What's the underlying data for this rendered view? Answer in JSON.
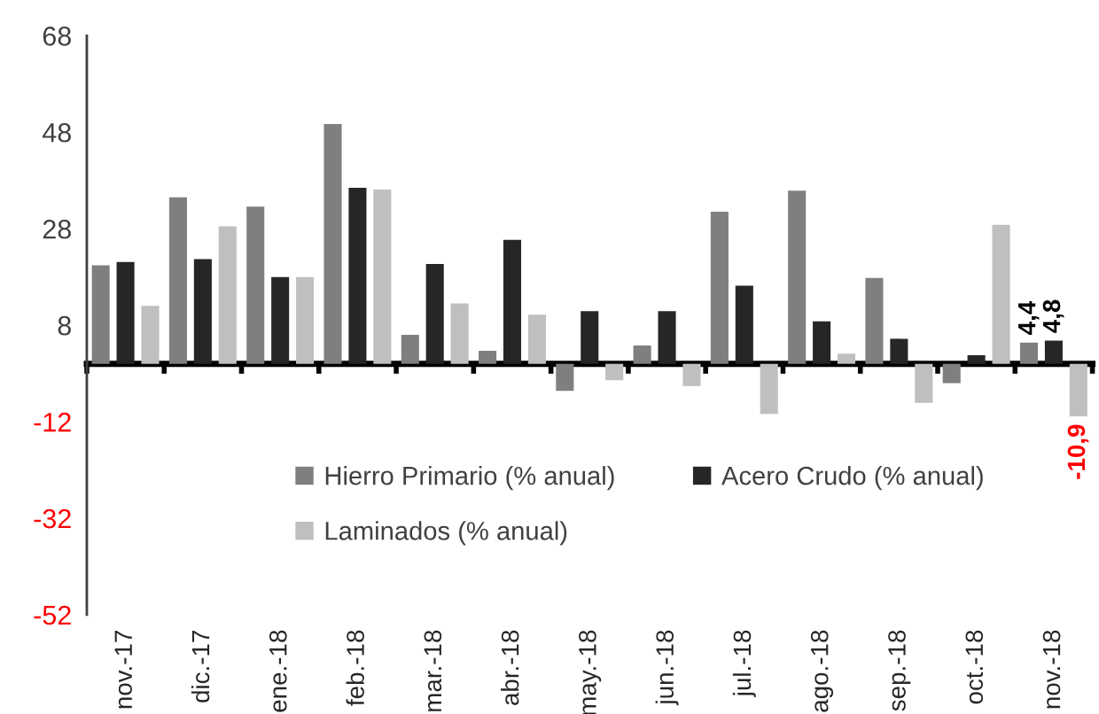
{
  "chart_data": {
    "type": "bar",
    "categories": [
      "nov.-17",
      "dic.-17",
      "ene.-18",
      "feb.-18",
      "mar.-18",
      "abr.-18",
      "may.-18",
      "jun.-18",
      "jul.-18",
      "ago.-18",
      "sep.-18",
      "oct.-18",
      "nov.-18"
    ],
    "series": [
      {
        "name": "Hierro Primario (% anual)",
        "color": "#7f7f7f",
        "values": [
          20.4,
          34.5,
          32.6,
          49.7,
          6.0,
          2.7,
          -5.6,
          3.8,
          31.5,
          35.9,
          17.8,
          -4.0,
          4.4
        ],
        "value_labels": [
          null,
          null,
          null,
          null,
          null,
          null,
          null,
          null,
          null,
          null,
          null,
          null,
          "4,4"
        ]
      },
      {
        "name": "Acero Crudo (% anual)",
        "color": "#262626",
        "values": [
          21.1,
          21.7,
          18.0,
          36.5,
          20.7,
          25.7,
          10.9,
          10.9,
          16.2,
          8.8,
          5.2,
          1.8,
          4.8
        ],
        "value_labels": [
          null,
          null,
          null,
          null,
          null,
          null,
          null,
          null,
          null,
          null,
          null,
          null,
          "4,8"
        ]
      },
      {
        "name": "Laminados (% anual)",
        "color": "#bfbfbf",
        "values": [
          12.0,
          28.5,
          18.0,
          36.1,
          12.5,
          10.2,
          -3.4,
          -4.6,
          -10.4,
          2.1,
          -8.1,
          28.8,
          -10.9
        ],
        "value_labels": [
          null,
          null,
          null,
          null,
          null,
          null,
          null,
          null,
          null,
          null,
          null,
          null,
          "-10,9"
        ]
      }
    ],
    "ylim": [
      -52,
      68
    ],
    "yticks": [
      -52,
      -32,
      -12,
      8,
      28,
      48,
      68
    ],
    "grid": false,
    "legend": "bottom"
  }
}
